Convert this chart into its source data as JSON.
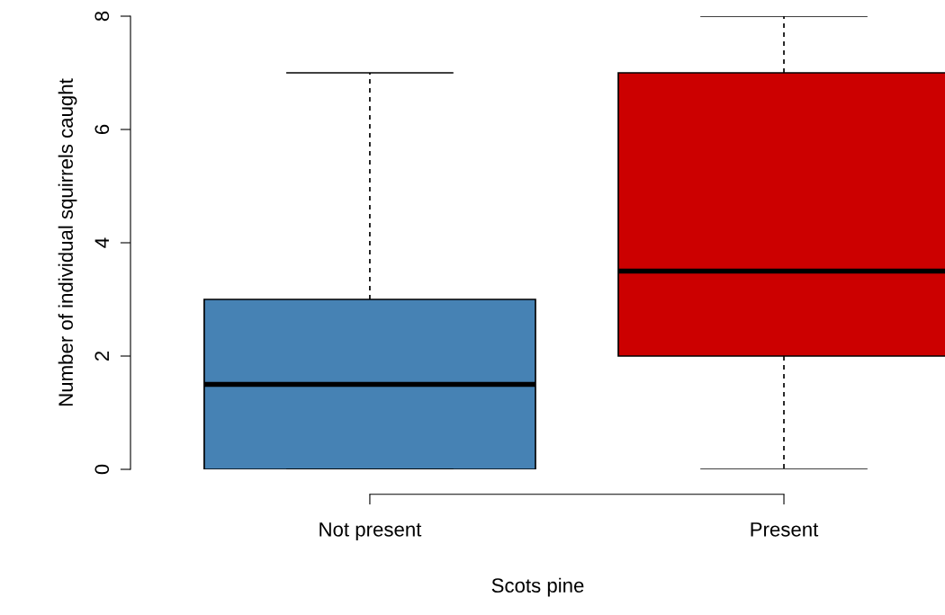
{
  "chart_data": {
    "type": "box",
    "xlabel": "Scots pine",
    "ylabel": "Number of individual squirrels caught",
    "categories": [
      "Not present",
      "Present"
    ],
    "boxes": [
      {
        "low": 0,
        "q1": 0,
        "median": 1.5,
        "q3": 3,
        "high": 7
      },
      {
        "low": 0,
        "q1": 2,
        "median": 3.5,
        "q3": 7,
        "high": 8
      }
    ],
    "colors": [
      "#4682b4",
      "#cc0000"
    ],
    "ylim": [
      0,
      8
    ],
    "yticks": [
      0,
      2,
      4,
      6,
      8
    ],
    "grid": false
  }
}
